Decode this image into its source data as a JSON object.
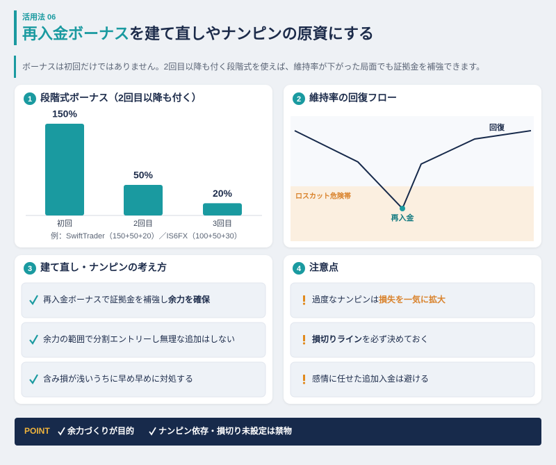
{
  "header": {
    "label": "活用法 06",
    "title_highlight": "再入金ボーナス",
    "title_rest": "を建て直しやナンピンの原資にする",
    "lead": "ボーナスは初回だけではありません。2回目以降も付く段階式を使えば、維持率が下がった局面でも証拠金を補強できます。"
  },
  "cards": [
    {
      "number": "1",
      "title": "段階式ボーナス（2回目以降も付く）",
      "note": "例：SwiftTrader（150+50+20）／IS6FX（100+50+30）"
    },
    {
      "number": "2",
      "title": "維持率の回復フロー",
      "labels": {
        "recovery": "回復",
        "danger": "ロスカット危険帯",
        "redeposit": "再入金"
      }
    },
    {
      "number": "3",
      "title": "建て直し・ナンピンの考え方",
      "items": [
        [
          {
            "text": "再入金ボーナスで証拠金を補強し"
          },
          {
            "text": "余力を確保",
            "style": "strong"
          }
        ],
        [
          {
            "text": "余力の範囲で分割エントリーし無理な追加はしない"
          }
        ],
        [
          {
            "text": "含み損が浅いうちに早め早めに対処する"
          }
        ]
      ]
    },
    {
      "number": "4",
      "title": "注意点",
      "items": [
        [
          {
            "text": "過度なナンピンは"
          },
          {
            "text": "損失を一気に拡大",
            "style": "accent"
          }
        ],
        [
          {
            "text": "損切りライン",
            "style": "strong"
          },
          {
            "text": "を必ず決めておく"
          }
        ],
        [
          {
            "text": "感情に任せた追加入金は避ける"
          }
        ]
      ]
    }
  ],
  "chart_data": {
    "type": "bar",
    "categories": [
      "初回",
      "2回目",
      "3回目"
    ],
    "values": [
      150,
      50,
      20
    ],
    "value_labels": [
      "150%",
      "50%",
      "20%"
    ],
    "color": "#1a9aa0"
  },
  "point": {
    "label": "POINT",
    "items": [
      "余力づくりが目的",
      "ナンピン依存・損切り未設定は禁物"
    ]
  }
}
